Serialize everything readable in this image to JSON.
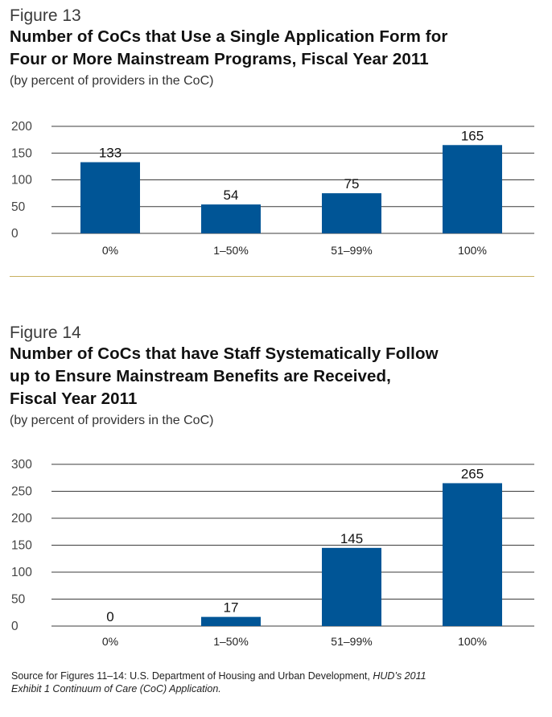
{
  "figures": [
    {
      "number": "Figure 13",
      "title_line1": "Number of CoCs that Use a Single Application Form for",
      "title_line2": "Four or More Mainstream Programs, Fiscal Year 2011",
      "title_line3": "",
      "subtitle": "(by percent of providers in the CoC)"
    },
    {
      "number": "Figure 14",
      "title_line1": "Number of CoCs that have Staff Systematically Follow",
      "title_line2": "up to Ensure Mainstream Benefits are Received,",
      "title_line3": "Fiscal Year 2011",
      "subtitle": "(by percent of providers in the CoC)"
    }
  ],
  "source": {
    "prefix": "Source for Figures 11–14: U.S. Department of Housing and Urban Development, ",
    "italic_line1": "HUD’s 2011",
    "italic_line2": "Exhibit 1 Continuum of Care (CoC) Application."
  },
  "colors": {
    "bar": "#005596",
    "grid": "#3c3c3c",
    "separator": "#c8b060"
  },
  "chart_data": [
    {
      "type": "bar",
      "title": "Number of CoCs that Use a Single Application Form for Four or More Mainstream Programs, Fiscal Year 2011",
      "categories": [
        "0%",
        "1–50%",
        "51–99%",
        "100%"
      ],
      "values": [
        133,
        54,
        75,
        165
      ],
      "ylim": [
        0,
        200
      ],
      "yticks": [
        0,
        50,
        100,
        150,
        200
      ],
      "grid": true
    },
    {
      "type": "bar",
      "title": "Number of CoCs that have Staff Systematically Follow up to Ensure Mainstream Benefits are Received, Fiscal Year 2011",
      "categories": [
        "0%",
        "1–50%",
        "51–99%",
        "100%"
      ],
      "values": [
        0,
        17,
        145,
        265
      ],
      "ylim": [
        0,
        300
      ],
      "yticks": [
        0,
        50,
        100,
        150,
        200,
        250,
        300
      ],
      "grid": true
    }
  ]
}
